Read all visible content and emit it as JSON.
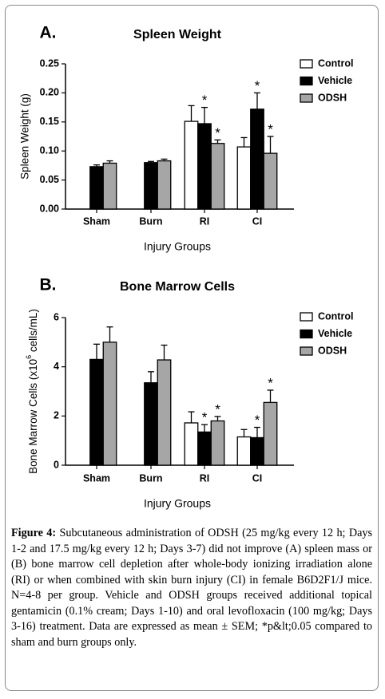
{
  "chart_data": [
    {
      "type": "bar",
      "panel": "A.",
      "title": "Spleen Weight",
      "y_label": "Spleen Weight (g)",
      "x_label": "Injury Groups",
      "categories": [
        "Sham",
        "Burn",
        "RI",
        "CI"
      ],
      "series": [
        {
          "name": "Control",
          "color": "#ffffff",
          "values": [
            null,
            null,
            0.151,
            0.107
          ],
          "errors": [
            null,
            null,
            0.027,
            0.016
          ],
          "markers": [
            null,
            null,
            null,
            null
          ]
        },
        {
          "name": "Vehicle",
          "color": "#000000",
          "values": [
            0.073,
            0.08,
            0.147,
            0.172
          ],
          "errors": [
            0.003,
            0.002,
            0.028,
            0.028
          ],
          "markers": [
            null,
            null,
            "*",
            "*"
          ]
        },
        {
          "name": "ODSH",
          "color": "#a6a6a6",
          "values": [
            0.079,
            0.083,
            0.113,
            0.096
          ],
          "errors": [
            0.004,
            0.003,
            0.006,
            0.029
          ],
          "markers": [
            null,
            null,
            "*",
            "*"
          ]
        }
      ],
      "ylim": [
        0,
        0.25
      ],
      "yticks": [
        {
          "value": 0,
          "label": "0.00"
        },
        0.05,
        {
          "value": 0.1,
          "label": "0.10"
        },
        0.15,
        {
          "value": 0.2,
          "label": "0.20"
        },
        0.25
      ],
      "legend": "upper right"
    },
    {
      "type": "bar",
      "panel": "B.",
      "title": "Bone Marrow Cells",
      "y_label": {
        "text": "Bone Marrow Cells (x10",
        "sup": "6",
        "after": " cells/mL)"
      },
      "x_label": "Injury Groups",
      "categories": [
        "Sham",
        "Burn",
        "RI",
        "CI"
      ],
      "series": [
        {
          "name": "Control",
          "color": "#ffffff",
          "values": [
            null,
            null,
            1.72,
            1.15
          ],
          "errors": [
            null,
            null,
            0.45,
            0.3
          ],
          "markers": [
            null,
            null,
            null,
            null
          ]
        },
        {
          "name": "Vehicle",
          "color": "#000000",
          "values": [
            4.3,
            3.35,
            1.35,
            1.12
          ],
          "errors": [
            0.62,
            0.45,
            0.3,
            0.42
          ],
          "markers": [
            null,
            null,
            "*",
            "*"
          ]
        },
        {
          "name": "ODSH",
          "color": "#a6a6a6",
          "values": [
            5.0,
            4.28,
            1.8,
            2.55
          ],
          "errors": [
            0.62,
            0.6,
            0.18,
            0.5
          ],
          "markers": [
            null,
            null,
            "*",
            "*"
          ]
        }
      ],
      "ylim": [
        0,
        6
      ],
      "yticks": [
        0,
        2,
        4,
        6
      ],
      "legend": "upper right"
    }
  ],
  "caption": {
    "label": "Figure 4:",
    "text": "Subcutaneous administration of ODSH (25 mg/kg every 12 h; Days 1-2 and 17.5 mg/kg every 12 h; Days 3-7) did not improve (A) spleen mass or (B) bone marrow cell depletion after whole-body ionizing irradiation alone (RI) or when combined with skin burn injury (CI) in female B6D2F1/J mice. N=4-8 per group. Vehicle and ODSH groups received additional topical gentamicin (0.1% cream; Days 1-10) and oral levofloxacin (100 mg/kg; Days 3-16) treatment. Data are expressed as mean ± SEM; *p&lt;0.05 compared to sham and burn groups only."
  }
}
